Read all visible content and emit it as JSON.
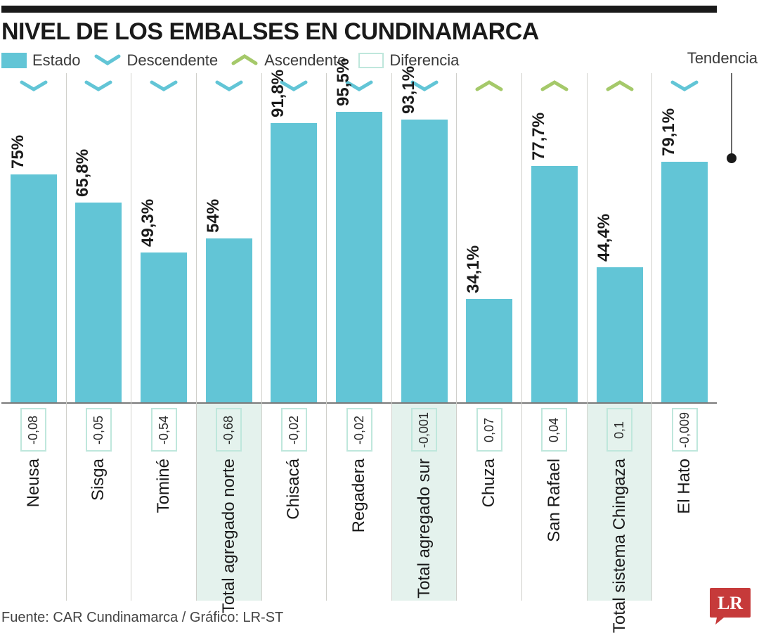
{
  "title": "NIVEL DE LOS EMBALSES EN CUNDINAMARCA",
  "legend": {
    "estado": "Estado",
    "descendente": "Descendente",
    "ascendente": "Ascendente",
    "diferencia": "Diferencia"
  },
  "tendencia_label": "Tendencia",
  "source": "Fuente: CAR Cundinamarca / Gráfico: LR-ST",
  "chart": {
    "type": "bar",
    "ylim": [
      0,
      100
    ],
    "bar_color": "#62c5d6",
    "trend_down_color": "#62c5d6",
    "trend_up_color": "#a5c96a",
    "highlight_bg": "#e4f2ed",
    "diff_border_color": "#bfe7dc",
    "grid_color": "#d0d0cb",
    "background_color": "#ffffff",
    "value_fontsize": 24,
    "category_fontsize": 24,
    "diff_fontsize": 18,
    "bar_width_pct": 72,
    "items": [
      {
        "name": "Neusa",
        "value": 75.0,
        "value_label": "75%",
        "diff": "-0,08",
        "trend": "down",
        "highlight": false
      },
      {
        "name": "Sisga",
        "value": 65.8,
        "value_label": "65,8%",
        "diff": "-0,05",
        "trend": "down",
        "highlight": false
      },
      {
        "name": "Tominé",
        "value": 49.3,
        "value_label": "49,3%",
        "diff": "-0,54",
        "trend": "down",
        "highlight": false
      },
      {
        "name": "Total agregado norte",
        "value": 54.0,
        "value_label": "54%",
        "diff": "-0,68",
        "trend": "down",
        "highlight": true
      },
      {
        "name": "Chisacá",
        "value": 91.8,
        "value_label": "91,8%",
        "diff": "-0,02",
        "trend": "down",
        "highlight": false
      },
      {
        "name": "Regadera",
        "value": 95.5,
        "value_label": "95,5%",
        "diff": "-0,02",
        "trend": "down",
        "highlight": false
      },
      {
        "name": "Total agregado sur",
        "value": 93.1,
        "value_label": "93,1%",
        "diff": "-0,001",
        "trend": "down",
        "highlight": true
      },
      {
        "name": "Chuza",
        "value": 34.1,
        "value_label": "34,1%",
        "diff": "0,07",
        "trend": "up",
        "highlight": false
      },
      {
        "name": "San Rafael",
        "value": 77.7,
        "value_label": "77,7%",
        "diff": "0,04",
        "trend": "up",
        "highlight": false
      },
      {
        "name": "Total sistema Chingaza",
        "value": 44.4,
        "value_label": "44,4%",
        "diff": "0,1",
        "trend": "up",
        "highlight": true
      },
      {
        "name": "El Hato",
        "value": 79.1,
        "value_label": "79,1%",
        "diff": "-0,009",
        "trend": "down",
        "highlight": false
      }
    ]
  },
  "logo": {
    "bg": "#c63a3a",
    "text": "LR",
    "text_color": "#ffffff"
  }
}
